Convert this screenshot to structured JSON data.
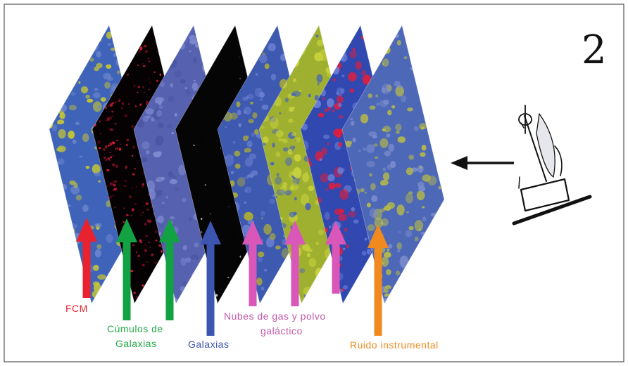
{
  "figure_number": "2",
  "layers": [
    {
      "name": "fcm",
      "color": "#3f63b8",
      "noise": "#c8c832",
      "noise2": "#6c86cc"
    },
    {
      "name": "cumulos",
      "color": "#060204",
      "noise": "#e8203c",
      "noise2": "#7a0e1c"
    },
    {
      "name": "galaxias-map",
      "color": "#5662b0",
      "noise": "#7f8ad0",
      "noise2": "#4a56a2"
    },
    {
      "name": "galaxias-black",
      "color": "#050505",
      "noise": "#ffffff",
      "noise2": "#222222"
    },
    {
      "name": "nubes-1",
      "color": "#3d59b0",
      "noise": "#6a7fd0",
      "noise2": "#a8a83a"
    },
    {
      "name": "nubes-2",
      "color": "#9fb030",
      "noise": "#c8d23c",
      "noise2": "#4a64b8"
    },
    {
      "name": "nubes-3",
      "color": "#3048b0",
      "noise": "#e01e3c",
      "noise2": "#6b80d6"
    },
    {
      "name": "ruido",
      "color": "#4e68b8",
      "noise": "#b8bb45",
      "noise2": "#7c8dcc"
    }
  ],
  "arrows": [
    {
      "color": "#e8232f"
    },
    {
      "color": "#12a243"
    },
    {
      "color": "#12a243"
    },
    {
      "color": "#3c55b0"
    },
    {
      "color": "#d957b8"
    },
    {
      "color": "#d957b8"
    },
    {
      "color": "#d957b8"
    },
    {
      "color": "#f08a1e"
    }
  ],
  "labels": {
    "fcm": {
      "text": "FCM",
      "color": "#e8232f"
    },
    "cumulos_line1": {
      "text": "Cúmulos de",
      "color": "#25a84a"
    },
    "cumulos_line2": {
      "text": "Galaxias",
      "color": "#25a84a"
    },
    "galaxias": {
      "text": "Galaxias",
      "color": "#3c55b0"
    },
    "nubes_line1": {
      "text": "Nubes de gas y polvo",
      "color": "#c25aa8"
    },
    "nubes_line2": {
      "text": "galáctico",
      "color": "#c25aa8"
    },
    "ruido": {
      "text": "Ruido instrumental",
      "color": "#f08a1e"
    }
  }
}
